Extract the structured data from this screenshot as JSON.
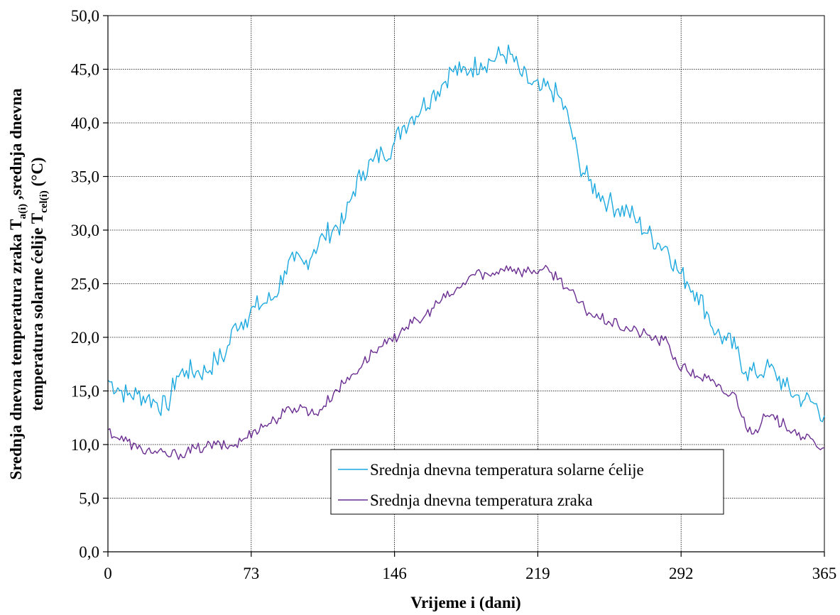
{
  "chart_data": {
    "type": "line",
    "xlabel": "Vrijeme i (dani)",
    "ylabel": {
      "line1_prefix": "Srednja dnevna temperatura zraka T",
      "line1_sub": "a(i)",
      "line1_suffix": " ,srednja dnevna",
      "line2_prefix": "temperatura solarne ćelije T",
      "line2_sub": "cel(i)",
      "line2_suffix": "  (°C)"
    },
    "xlim": [
      0,
      365
    ],
    "ylim": [
      0,
      50
    ],
    "x_ticks": [
      0,
      73,
      146,
      219,
      292,
      365
    ],
    "x_tick_labels": [
      "0",
      "73",
      "146",
      "219",
      "292",
      "365"
    ],
    "y_ticks": [
      0,
      5,
      10,
      15,
      20,
      25,
      30,
      35,
      40,
      45,
      50
    ],
    "y_tick_labels": [
      "0,0",
      "5,0",
      "10,0",
      "15,0",
      "20,0",
      "25,0",
      "30,0",
      "35,0",
      "40,0",
      "45,0",
      "50,0"
    ],
    "grid": true,
    "legend_position": "bottom-right",
    "series": [
      {
        "name": "Srednja dnevna temperatura  solarne ćelije",
        "color": "#1CA9DF",
        "x": [
          0,
          5,
          10,
          15,
          20,
          25,
          30,
          35,
          40,
          45,
          50,
          55,
          60,
          65,
          70,
          75,
          80,
          85,
          90,
          95,
          100,
          105,
          110,
          115,
          120,
          125,
          130,
          135,
          140,
          145,
          150,
          155,
          160,
          165,
          170,
          175,
          180,
          185,
          190,
          195,
          200,
          205,
          210,
          215,
          220,
          225,
          230,
          235,
          240,
          245,
          250,
          255,
          260,
          265,
          270,
          275,
          280,
          285,
          290,
          295,
          300,
          305,
          310,
          315,
          320,
          325,
          330,
          335,
          340,
          345,
          350,
          355,
          360,
          365
        ],
        "values": [
          16.0,
          15.3,
          14.6,
          14.7,
          14.4,
          13.9,
          13.4,
          16.4,
          16.9,
          16.8,
          16.8,
          17.9,
          18.4,
          21.3,
          21.7,
          22.8,
          23.2,
          23.8,
          26.2,
          27.1,
          26.8,
          28.2,
          29.4,
          30.2,
          30.6,
          33.6,
          35.5,
          36.4,
          37.2,
          37.8,
          39.6,
          40.6,
          41.5,
          42.6,
          43.5,
          44.9,
          44.7,
          45.1,
          45.6,
          45.8,
          46.3,
          46.4,
          44.6,
          43.7,
          43.0,
          43.2,
          42.4,
          40.1,
          36.3,
          34.6,
          33.5,
          32.6,
          32.0,
          31.8,
          30.7,
          29.7,
          28.8,
          28.4,
          26.3,
          25.2,
          24.2,
          22.4,
          20.4,
          19.7,
          18.9,
          16.8,
          16.6,
          17.1,
          16.7,
          15.4,
          14.6,
          14.2,
          13.8,
          12.7
        ]
      },
      {
        "name": "Srednja dnevna temperatura  zraka",
        "color": "#6A2D91",
        "x": [
          0,
          5,
          10,
          15,
          20,
          25,
          30,
          35,
          40,
          45,
          50,
          55,
          60,
          65,
          70,
          75,
          80,
          85,
          90,
          95,
          100,
          105,
          110,
          115,
          120,
          125,
          130,
          135,
          140,
          145,
          150,
          155,
          160,
          165,
          170,
          175,
          180,
          185,
          190,
          195,
          200,
          205,
          210,
          215,
          220,
          225,
          230,
          235,
          240,
          245,
          250,
          255,
          260,
          265,
          270,
          275,
          280,
          285,
          290,
          295,
          300,
          305,
          310,
          315,
          320,
          325,
          330,
          335,
          340,
          345,
          350,
          355,
          360,
          365
        ],
        "values": [
          11.4,
          10.6,
          10.3,
          9.6,
          9.5,
          9.2,
          9.0,
          9.1,
          9.3,
          9.6,
          9.8,
          10.0,
          9.8,
          10.0,
          10.6,
          11.4,
          11.8,
          12.3,
          13.0,
          13.4,
          13.5,
          12.8,
          13.6,
          14.8,
          15.7,
          16.6,
          17.6,
          18.6,
          19.2,
          19.6,
          20.9,
          21.3,
          21.6,
          22.7,
          23.5,
          24.0,
          24.7,
          25.8,
          26.0,
          25.7,
          26.4,
          26.6,
          26.1,
          26.2,
          26.3,
          26.1,
          25.5,
          24.4,
          23.2,
          22.3,
          21.8,
          21.5,
          21.1,
          20.8,
          20.5,
          20.2,
          19.7,
          19.6,
          17.5,
          16.9,
          16.4,
          16.2,
          15.4,
          14.7,
          14.6,
          11.6,
          11.4,
          12.6,
          12.3,
          11.8,
          11.4,
          10.5,
          10.2,
          9.7
        ]
      }
    ]
  }
}
